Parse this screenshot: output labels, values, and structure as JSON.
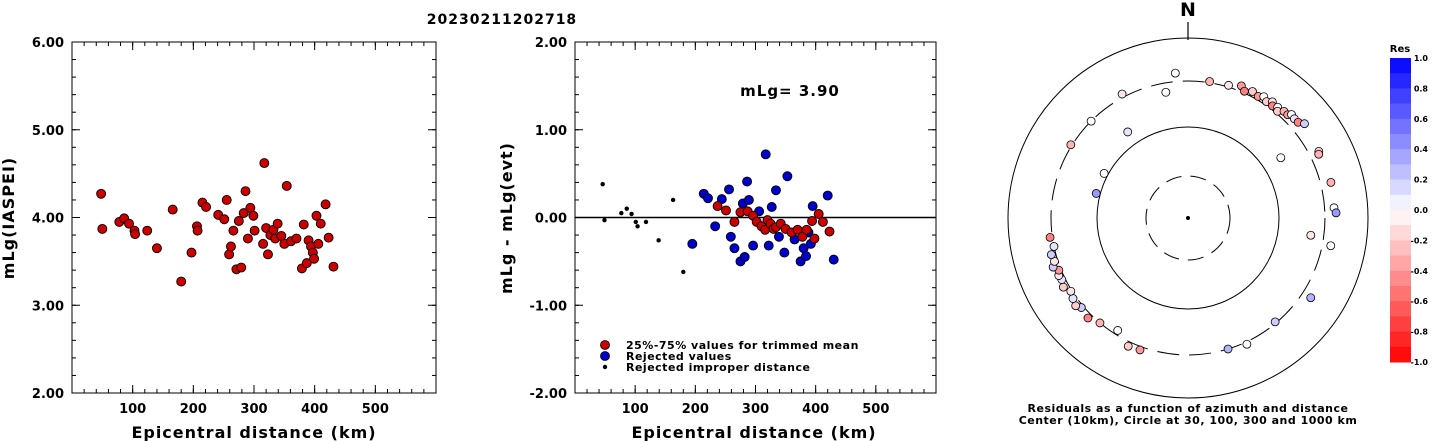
{
  "title": "20230211202718",
  "left_panel": {
    "ylabel": "mLg(IASPEI)",
    "xlabel": "Epicentral distance (km)",
    "yticks": [
      "2.00",
      "3.00",
      "4.00",
      "5.00",
      "6.00"
    ],
    "xticks": [
      "100",
      "200",
      "300",
      "400",
      "500"
    ]
  },
  "middle_panel": {
    "ylabel": "mLg - mLg(evt)",
    "xlabel": "Epicentral distance (km)",
    "yticks": [
      "-2.00",
      "-1.00",
      "0.00",
      "1.00",
      "2.00"
    ],
    "xticks": [
      "100",
      "200",
      "300",
      "400",
      "500"
    ],
    "annotation": "mLg= 3.90",
    "legend": [
      {
        "label": "25%-75% values for trimmed mean",
        "color": "#cc0000"
      },
      {
        "label": "Rejected values",
        "color": "#0000cc"
      },
      {
        "label": "Rejected improper distance",
        "color": "#000000"
      }
    ]
  },
  "right_panel": {
    "north_label": "N",
    "caption_line1": "Residuals as a function of azimuth and distance",
    "caption_line2": "Center (10km), Circle at 30, 100, 300 and 1000 km",
    "colorbar_title": "Res",
    "colorbar_ticks": [
      "1.0",
      "0.8",
      "0.6",
      "0.4",
      "0.2",
      "0.0",
      "-0.2",
      "-0.4",
      "-0.6",
      "-0.8",
      "-1.0"
    ]
  },
  "colors": {
    "red": "#cc0000",
    "blue": "#0000cc",
    "black": "#000000"
  },
  "chart_data": [
    {
      "type": "scatter",
      "title": "20230211202718",
      "xlabel": "Epicentral distance (km)",
      "ylabel": "mLg(IASPEI)",
      "xlim": [
        0,
        600
      ],
      "ylim": [
        2.0,
        6.0
      ],
      "series": [
        {
          "points": [
            [
              48,
              4.27
            ],
            [
              50,
              3.87
            ],
            [
              78,
              3.95
            ],
            [
              86,
              3.99
            ],
            [
              94,
              3.93
            ],
            [
              103,
              3.85
            ],
            [
              104,
              3.81
            ],
            [
              124,
              3.85
            ],
            [
              140,
              3.65
            ],
            [
              166,
              4.09
            ],
            [
              180,
              3.27
            ],
            [
              197,
              3.6
            ],
            [
              206,
              3.9
            ],
            [
              207,
              3.85
            ],
            [
              215,
              4.17
            ],
            [
              221,
              4.12
            ],
            [
              241,
              4.03
            ],
            [
              251,
              3.98
            ],
            [
              255,
              4.2
            ],
            [
              259,
              3.58
            ],
            [
              262,
              3.67
            ],
            [
              266,
              3.85
            ],
            [
              271,
              3.41
            ],
            [
              275,
              3.96
            ],
            [
              279,
              3.43
            ],
            [
              283,
              4.05
            ],
            [
              286,
              4.3
            ],
            [
              290,
              3.76
            ],
            [
              294,
              4.11
            ],
            [
              299,
              4.02
            ],
            [
              301,
              3.85
            ],
            [
              315,
              3.7
            ],
            [
              317,
              4.62
            ],
            [
              320,
              3.88
            ],
            [
              323,
              3.58
            ],
            [
              327,
              3.8
            ],
            [
              332,
              3.86
            ],
            [
              335,
              3.76
            ],
            [
              339,
              3.93
            ],
            [
              345,
              3.79
            ],
            [
              350,
              3.7
            ],
            [
              354,
              4.36
            ],
            [
              361,
              3.73
            ],
            [
              370,
              3.76
            ],
            [
              379,
              3.42
            ],
            [
              382,
              3.92
            ],
            [
              387,
              3.48
            ],
            [
              390,
              3.74
            ],
            [
              394,
              3.67
            ],
            [
              397,
              3.6
            ],
            [
              399,
              3.53
            ],
            [
              403,
              4.02
            ],
            [
              406,
              3.7
            ],
            [
              410,
              3.93
            ],
            [
              418,
              4.15
            ],
            [
              423,
              3.77
            ],
            [
              431,
              3.44
            ]
          ]
        }
      ]
    },
    {
      "type": "scatter",
      "xlabel": "Epicentral distance (km)",
      "ylabel": "mLg - mLg(evt)",
      "xlim": [
        0,
        600
      ],
      "ylim": [
        -2.0,
        2.0
      ],
      "reference_line": 0.0,
      "series": [
        {
          "name": "25%-75% values for trimmed mean",
          "points": [
            [
              237,
              0.13
            ],
            [
              251,
              0.08
            ],
            [
              265,
              -0.05
            ],
            [
              275,
              0.06
            ],
            [
              287,
              0.07
            ],
            [
              296,
              0.02
            ],
            [
              302,
              -0.05
            ],
            [
              310,
              -0.1
            ],
            [
              316,
              -0.14
            ],
            [
              320,
              -0.03
            ],
            [
              325,
              -0.07
            ],
            [
              330,
              -0.13
            ],
            [
              334,
              -0.11
            ],
            [
              342,
              -0.07
            ],
            [
              350,
              -0.13
            ],
            [
              360,
              -0.17
            ],
            [
              370,
              -0.14
            ],
            [
              378,
              -0.22
            ],
            [
              385,
              -0.14
            ],
            [
              394,
              -0.04
            ],
            [
              398,
              -0.24
            ],
            [
              405,
              0.04
            ],
            [
              412,
              -0.05
            ],
            [
              423,
              -0.16
            ]
          ]
        },
        {
          "name": "Rejected values",
          "points": [
            [
              195,
              -0.3
            ],
            [
              214,
              0.27
            ],
            [
              221,
              0.22
            ],
            [
              233,
              -0.1
            ],
            [
              244,
              0.21
            ],
            [
              256,
              0.32
            ],
            [
              259,
              -0.22
            ],
            [
              265,
              -0.35
            ],
            [
              275,
              -0.5
            ],
            [
              279,
              0.16
            ],
            [
              282,
              -0.45
            ],
            [
              286,
              0.41
            ],
            [
              289,
              0.2
            ],
            [
              296,
              -0.32
            ],
            [
              306,
              0.07
            ],
            [
              317,
              0.72
            ],
            [
              322,
              -0.32
            ],
            [
              327,
              0.12
            ],
            [
              334,
              0.31
            ],
            [
              339,
              -0.22
            ],
            [
              348,
              -0.4
            ],
            [
              353,
              0.47
            ],
            [
              365,
              -0.25
            ],
            [
              375,
              -0.5
            ],
            [
              380,
              -0.35
            ],
            [
              384,
              -0.44
            ],
            [
              388,
              -0.17
            ],
            [
              392,
              -0.3
            ],
            [
              395,
              0.13
            ],
            [
              420,
              0.25
            ],
            [
              430,
              -0.48
            ]
          ]
        },
        {
          "name": "Rejected improper distance",
          "points": [
            [
              46,
              0.38
            ],
            [
              49,
              -0.03
            ],
            [
              77,
              0.05
            ],
            [
              86,
              0.1
            ],
            [
              94,
              0.04
            ],
            [
              101,
              -0.05
            ],
            [
              104,
              -0.1
            ],
            [
              118,
              -0.05
            ],
            [
              139,
              -0.26
            ],
            [
              163,
              0.2
            ],
            [
              180,
              -0.62
            ]
          ]
        }
      ]
    },
    {
      "type": "scatter",
      "polar": true,
      "radial_scale": "log",
      "center_distance_km": 10,
      "circles_km": [
        30,
        100,
        300,
        1000
      ],
      "colorbar_range": [
        -1.0,
        1.0
      ],
      "points_az_dist_res": [
        [
          9,
          310,
          -0.3
        ],
        [
          17,
          315,
          -0.1
        ],
        [
          22,
          350,
          -0.4
        ],
        [
          24,
          315,
          -0.5
        ],
        [
          27,
          345,
          -0.2
        ],
        [
          30,
          330,
          -0.4
        ],
        [
          32,
          355,
          0.0
        ],
        [
          34,
          330,
          -0.2
        ],
        [
          36,
          360,
          -0.1
        ],
        [
          37,
          330,
          -0.5
        ],
        [
          39,
          350,
          0.0
        ],
        [
          40,
          320,
          -0.2
        ],
        [
          42,
          360,
          -0.3
        ],
        [
          44,
          360,
          -0.4
        ],
        [
          45,
          390,
          0.0
        ],
        [
          47,
          380,
          0.1
        ],
        [
          49,
          385,
          -0.5
        ],
        [
          51,
          430,
          0.2
        ],
        [
          57,
          160,
          0.0
        ],
        [
          63,
          395,
          -0.2
        ],
        [
          64,
          380,
          -0.3
        ],
        [
          76,
          400,
          -0.3
        ],
        [
          86,
          390,
          0.0
        ],
        [
          88,
          410,
          0.4
        ],
        [
          98,
          220,
          -0.1
        ],
        [
          101,
          380,
          0.0
        ],
        [
          123,
          390,
          0.3
        ],
        [
          140,
          290,
          0.2
        ],
        [
          155,
          320,
          0.0
        ],
        [
          163,
          300,
          0.3
        ],
        [
          200,
          330,
          -0.4
        ],
        [
          205,
          340,
          -0.2
        ],
        [
          212,
          270,
          0.0
        ],
        [
          220,
          300,
          -0.3
        ],
        [
          225,
          340,
          -0.5
        ],
        [
          230,
          320,
          0.2
        ],
        [
          232,
          350,
          -0.2
        ],
        [
          235,
          330,
          0.1
        ],
        [
          238,
          310,
          -0.1
        ],
        [
          241,
          350,
          -0.2
        ],
        [
          244,
          330,
          0.1
        ],
        [
          246,
          340,
          -0.1
        ],
        [
          248,
          320,
          -0.4
        ],
        [
          250,
          360,
          0.2
        ],
        [
          252,
          330,
          -0.1
        ],
        [
          255,
          340,
          0.2
        ],
        [
          258,
          300,
          0.1
        ],
        [
          262,
          320,
          -0.5
        ],
        [
          285,
          110,
          0.4
        ],
        [
          298,
          110,
          0.0
        ],
        [
          302,
          310,
          -0.3
        ],
        [
          315,
          300,
          0.0
        ],
        [
          325,
          140,
          0.1
        ],
        [
          332,
          330,
          -0.1
        ],
        [
          350,
          240,
          0.0
        ],
        [
          355,
          380,
          0.0
        ]
      ]
    }
  ]
}
